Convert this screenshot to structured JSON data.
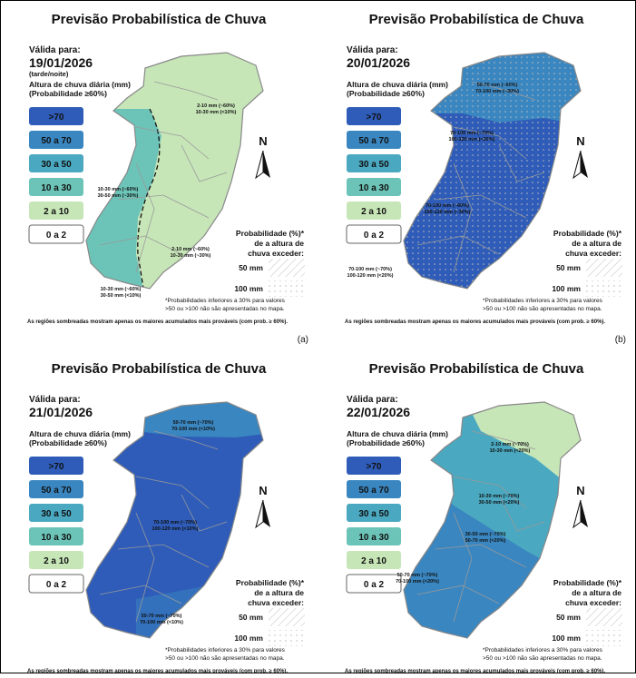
{
  "title": "Previsão Probabilística de Chuva",
  "valid_label": "Válida para:",
  "legend_title": [
    "Altura de chuva diária (mm)",
    "(Probabilidade ≥60%)"
  ],
  "classes": [
    {
      "label": ">70",
      "color": "#2e5cb8"
    },
    {
      "label": "50 a 70",
      "color": "#3a86c0"
    },
    {
      "label": "30 a 50",
      "color": "#4aa8c0"
    },
    {
      "label": "10 a 30",
      "color": "#6cc4b8"
    },
    {
      "label": "2 a 10",
      "color": "#c7e6b8"
    },
    {
      "label": "0 a 2",
      "color": "#ffffff"
    }
  ],
  "north": "N",
  "prob_title": [
    "Probabilidade (%)*",
    "de a altura de",
    "chuva exceder:"
  ],
  "prob_50": "50 mm",
  "prob_100": "100 mm",
  "footnote": [
    "*Probabilidades inferiores a 30% para valores",
    ">50 ou >100 não são apresentadas no mapa."
  ],
  "bottom_note": "As regiões sombreadas mostram apenas os maiores acumulados mais prováveis (com prob. ≥ 60%).",
  "panels": [
    {
      "date": "19/01/2026",
      "period": "(tarde/noite)",
      "label": "(a)",
      "annotations": [
        [
          "2-10 mm (~60%)",
          "10-30 mm (<10%)"
        ],
        [
          "10-30 mm (~60%)",
          "30-50 mm (~30%)"
        ],
        [
          "2-10 mm (~60%)",
          "10-30 mm (~30%)"
        ],
        [
          "10-30 mm (~60%)",
          "30-50 mm (<10%)"
        ]
      ]
    },
    {
      "date": "20/01/2026",
      "label": "(b)",
      "annotations": [
        [
          "50-70 mm (~60%)",
          "70-100 mm (~30%)"
        ],
        [
          "70-100 mm (~70%)",
          "100-120 mm (<20%)"
        ],
        [
          "70-100 mm (~60%)",
          "100-120 mm (~30%)"
        ],
        [
          "70-100 mm (~70%)",
          "100-120 mm (<20%)"
        ]
      ]
    },
    {
      "date": "21/01/2026",
      "annotations": [
        [
          "50-70 mm (~70%)",
          "70-100 mm (<10%)"
        ],
        [
          "70-100 mm (~70%)",
          "100-120 mm (<10%)"
        ],
        [
          "50-70 mm (~70%)",
          "70-100 mm (<10%)"
        ]
      ]
    },
    {
      "date": "22/01/2026",
      "annotations": [
        [
          "2-10 mm (~70%)",
          "10-30 mm (<20%)"
        ],
        [
          "10-30 mm (~70%)",
          "30-50 mm (<20%)"
        ],
        [
          "30-50 mm (~70%)",
          "50-70 mm (<20%)"
        ],
        [
          "50-70 mm (~70%)",
          "70-100 mm (<20%)"
        ]
      ]
    }
  ]
}
